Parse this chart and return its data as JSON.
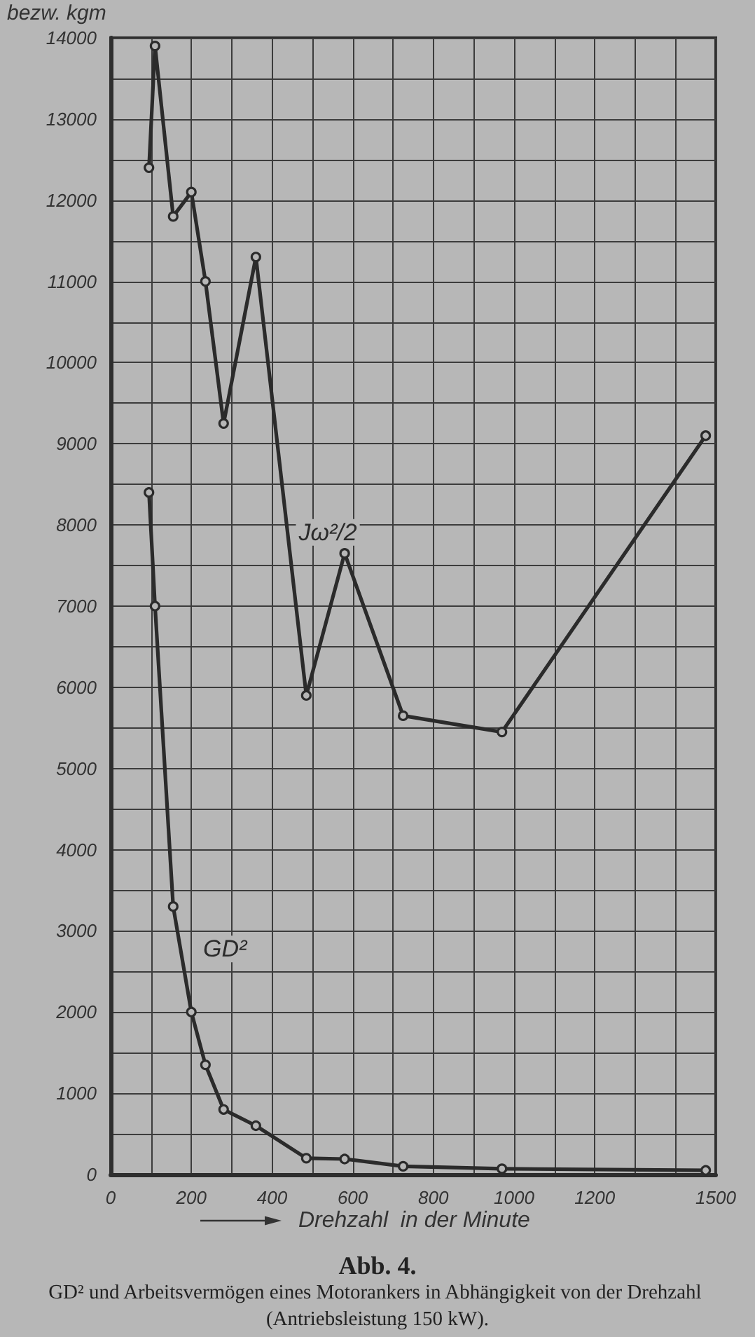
{
  "chart_data": {
    "type": "line",
    "title": "Abb. 4.",
    "subtitle": "GD² und Arbeitsvermögen eines Motorankers in Abhängigkeit von der Drehzahl (Antriebsleistung 150 kW).",
    "xlabel": "Drehzahl  in der Minute",
    "ylabel": "bezw. kgm",
    "x": [
      95,
      110,
      155,
      200,
      235,
      280,
      360,
      485,
      580,
      725,
      970,
      1475
    ],
    "series": [
      {
        "name": "Jω²/2",
        "color": "#2b2b2b",
        "values": [
          12400,
          13900,
          11800,
          12100,
          11000,
          9250,
          11300,
          5900,
          7650,
          5650,
          5450,
          9100
        ]
      },
      {
        "name": "GD²",
        "color": "#2b2b2b",
        "values": [
          8400,
          7000,
          3300,
          2000,
          1350,
          800,
          600,
          200,
          190,
          100,
          70,
          50
        ]
      }
    ],
    "xlim": [
      0,
      1500
    ],
    "xticks": [
      0,
      {
        "value": 100,
        "label": null
      },
      200,
      {
        "value": 300,
        "label": null
      },
      400,
      {
        "value": 500,
        "label": null
      },
      600,
      {
        "value": 700,
        "label": null
      },
      800,
      {
        "value": 900,
        "label": null
      },
      1000,
      {
        "value": 1100,
        "label": null
      },
      1200,
      {
        "value": 1300,
        "label": null
      },
      {
        "value": 1400,
        "label": null
      },
      1500
    ],
    "ylim": [
      0,
      14000
    ],
    "yticks": [
      0,
      {
        "value": 500,
        "label": null
      },
      1000,
      {
        "value": 1500,
        "label": null
      },
      2000,
      {
        "value": 2500,
        "label": null
      },
      3000,
      {
        "value": 3500,
        "label": null
      },
      4000,
      {
        "value": 4500,
        "label": null
      },
      5000,
      {
        "value": 5500,
        "label": null
      },
      6000,
      {
        "value": 6500,
        "label": null
      },
      7000,
      {
        "value": 7500,
        "label": null
      },
      8000,
      {
        "value": 8500,
        "label": null
      },
      9000,
      {
        "value": 9500,
        "label": null
      },
      10000,
      {
        "value": 10500,
        "label": null
      },
      11000,
      {
        "value": 11500,
        "label": null
      },
      12000,
      {
        "value": 12500,
        "label": null
      },
      13000,
      {
        "value": 13500,
        "label": null
      },
      14000
    ],
    "grid": true,
    "marker": "circle",
    "line_style": "solid"
  }
}
